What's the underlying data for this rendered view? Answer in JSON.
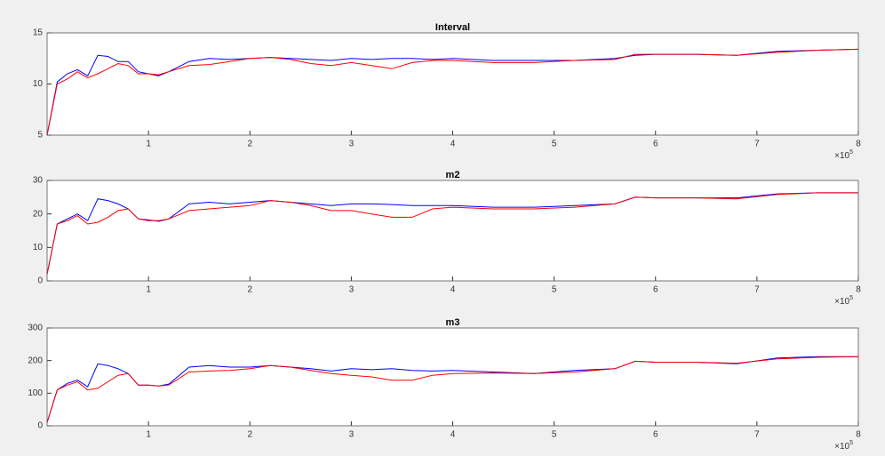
{
  "chart_data": [
    {
      "type": "line",
      "title": "Interval",
      "x_multiplier": "×10",
      "x_exponent": "5",
      "x": [
        0,
        0.1,
        0.2,
        0.3,
        0.4,
        0.5,
        0.6,
        0.7,
        0.8,
        0.9,
        1.0,
        1.1,
        1.2,
        1.4,
        1.6,
        1.8,
        2.0,
        2.2,
        2.4,
        2.6,
        2.8,
        3.0,
        3.2,
        3.4,
        3.6,
        3.8,
        4.0,
        4.4,
        4.8,
        5.2,
        5.6,
        5.8,
        6.0,
        6.4,
        6.8,
        7.2,
        7.6,
        8.0
      ],
      "xlim": [
        0,
        8
      ],
      "xticks": [
        1,
        2,
        3,
        4,
        5,
        6,
        7,
        8
      ],
      "ylim": [
        5,
        15
      ],
      "yticks": [
        5,
        10,
        15
      ],
      "series": [
        {
          "color": "#0000ff",
          "values": [
            5,
            10.2,
            11,
            11.4,
            10.8,
            12.8,
            12.7,
            12.2,
            12.2,
            11.2,
            11,
            10.8,
            11.2,
            12.2,
            12.5,
            12.4,
            12.5,
            12.6,
            12.5,
            12.4,
            12.3,
            12.5,
            12.4,
            12.5,
            12.5,
            12.4,
            12.5,
            12.3,
            12.3,
            12.3,
            12.5,
            12.8,
            12.9,
            12.9,
            12.8,
            13.2,
            13.3,
            13.4
          ]
        },
        {
          "color": "#ff0000",
          "values": [
            5,
            10,
            10.5,
            11.2,
            10.6,
            11,
            11.5,
            12,
            11.8,
            11,
            11,
            10.9,
            11.2,
            11.8,
            11.9,
            12.2,
            12.5,
            12.6,
            12.4,
            12,
            11.8,
            12.1,
            11.8,
            11.5,
            12.1,
            12.3,
            12.3,
            12.1,
            12.1,
            12.3,
            12.4,
            12.9,
            12.9,
            12.9,
            12.8,
            13.1,
            13.3,
            13.4
          ]
        }
      ]
    },
    {
      "type": "line",
      "title": "m2",
      "x_multiplier": "×10",
      "x_exponent": "5",
      "x": [
        0,
        0.1,
        0.2,
        0.3,
        0.4,
        0.5,
        0.6,
        0.7,
        0.8,
        0.9,
        1.0,
        1.1,
        1.2,
        1.4,
        1.6,
        1.8,
        2.0,
        2.2,
        2.4,
        2.6,
        2.8,
        3.0,
        3.2,
        3.4,
        3.6,
        3.8,
        4.0,
        4.4,
        4.8,
        5.2,
        5.6,
        5.8,
        6.0,
        6.4,
        6.8,
        7.2,
        7.6,
        8.0
      ],
      "xlim": [
        0,
        8
      ],
      "xticks": [
        1,
        2,
        3,
        4,
        5,
        6,
        7,
        8
      ],
      "ylim": [
        0,
        30
      ],
      "yticks": [
        0,
        10,
        20,
        30
      ],
      "series": [
        {
          "color": "#0000ff",
          "values": [
            2,
            17,
            18.5,
            20,
            18,
            24.5,
            24,
            23,
            21.5,
            18.5,
            18.2,
            17.8,
            18.5,
            23,
            23.5,
            23,
            23.5,
            24,
            23.5,
            23,
            22.5,
            23,
            23,
            22.8,
            22.5,
            22.5,
            22.5,
            22,
            22,
            22.5,
            23,
            25,
            24.8,
            24.8,
            24.8,
            26,
            26.3,
            26.3
          ]
        },
        {
          "color": "#ff0000",
          "values": [
            2,
            17,
            18,
            19.5,
            17,
            17.5,
            19,
            21,
            21.5,
            18.5,
            18,
            18,
            18.5,
            21,
            21.5,
            22,
            22.5,
            24,
            23.5,
            22.5,
            21,
            21,
            20,
            19,
            19,
            21.5,
            22,
            21.5,
            21.5,
            22,
            23,
            25,
            24.8,
            24.8,
            24.5,
            25.8,
            26.3,
            26.3
          ]
        }
      ]
    },
    {
      "type": "line",
      "title": "m3",
      "x_multiplier": "×10",
      "x_exponent": "5",
      "x": [
        0,
        0.1,
        0.2,
        0.3,
        0.4,
        0.5,
        0.6,
        0.7,
        0.8,
        0.9,
        1.0,
        1.1,
        1.2,
        1.4,
        1.6,
        1.8,
        2.0,
        2.2,
        2.4,
        2.6,
        2.8,
        3.0,
        3.2,
        3.4,
        3.6,
        3.8,
        4.0,
        4.4,
        4.8,
        5.2,
        5.6,
        5.8,
        6.0,
        6.4,
        6.8,
        7.2,
        7.6,
        8.0
      ],
      "xlim": [
        0,
        8
      ],
      "xticks": [
        1,
        2,
        3,
        4,
        5,
        6,
        7,
        8
      ],
      "ylim": [
        0,
        300
      ],
      "yticks": [
        0,
        100,
        200,
        300
      ],
      "series": [
        {
          "color": "#0000ff",
          "values": [
            10,
            110,
            130,
            140,
            120,
            190,
            185,
            175,
            160,
            125,
            125,
            122,
            128,
            180,
            185,
            180,
            180,
            185,
            180,
            175,
            168,
            175,
            172,
            175,
            170,
            168,
            170,
            165,
            160,
            170,
            175,
            198,
            195,
            195,
            190,
            208,
            212,
            212
          ]
        },
        {
          "color": "#ff0000",
          "values": [
            10,
            110,
            125,
            135,
            110,
            115,
            135,
            155,
            160,
            125,
            125,
            122,
            125,
            165,
            168,
            170,
            175,
            185,
            180,
            170,
            160,
            155,
            150,
            140,
            140,
            155,
            160,
            162,
            160,
            165,
            175,
            198,
            195,
            195,
            192,
            205,
            210,
            212
          ]
        }
      ]
    }
  ]
}
